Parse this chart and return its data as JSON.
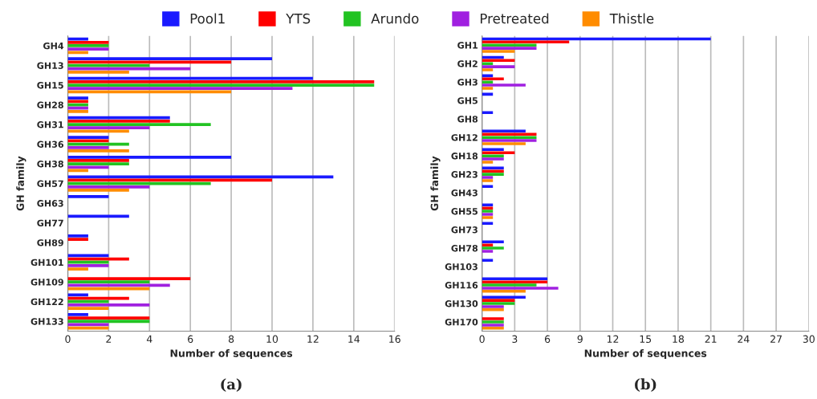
{
  "chart_data": [
    {
      "type": "bar",
      "orientation": "horizontal",
      "xlabel": "Number of sequences",
      "ylabel": "GH family",
      "annotations": [
        "(a)"
      ],
      "categories": [
        "GH4",
        "GH13",
        "GH15",
        "GH28",
        "GH31",
        "GH36",
        "GH38",
        "GH57",
        "GH63",
        "GH77",
        "GH89",
        "GH101",
        "GH109",
        "GH122",
        "GH133"
      ],
      "series": [
        {
          "name": "Pool1",
          "color": "#1a1aff",
          "values": [
            1,
            10,
            12,
            1,
            5,
            2,
            8,
            13,
            2,
            3,
            1,
            2,
            null,
            1,
            1
          ]
        },
        {
          "name": "YTS",
          "color": "#ff0000",
          "values": [
            2,
            8,
            15,
            1,
            5,
            2,
            3,
            10,
            null,
            null,
            1,
            3,
            6,
            3,
            4
          ]
        },
        {
          "name": "Arundo",
          "color": "#22c322",
          "values": [
            2,
            4,
            15,
            1,
            7,
            3,
            3,
            7,
            null,
            null,
            null,
            2,
            4,
            2,
            4
          ]
        },
        {
          "name": "Pretreated",
          "color": "#a020e0",
          "values": [
            2,
            6,
            11,
            1,
            4,
            2,
            2,
            4,
            null,
            null,
            null,
            2,
            5,
            4,
            2
          ]
        },
        {
          "name": "Thistle",
          "color": "#ff8c00",
          "values": [
            1,
            3,
            8,
            1,
            3,
            3,
            1,
            3,
            null,
            null,
            null,
            1,
            4,
            2,
            2
          ]
        }
      ],
      "xlim": [
        0,
        16
      ],
      "xticks": [
        0,
        2,
        4,
        6,
        8,
        10,
        12,
        14,
        16
      ],
      "grid": "x",
      "legend": "top"
    },
    {
      "type": "bar",
      "orientation": "horizontal",
      "xlabel": "Number of sequences",
      "ylabel": "GH family",
      "annotations": [
        "(b)"
      ],
      "categories": [
        "GH1",
        "GH2",
        "GH3",
        "GH5",
        "GH8",
        "GH12",
        "GH18",
        "GH23",
        "GH43",
        "GH55",
        "GH73",
        "GH78",
        "GH103",
        "GH116",
        "GH130",
        "GH170"
      ],
      "series": [
        {
          "name": "Pool1",
          "color": "#1a1aff",
          "values": [
            21,
            2,
            1,
            1,
            1,
            4,
            2,
            2,
            1,
            1,
            1,
            2,
            1,
            6,
            4,
            null
          ]
        },
        {
          "name": "YTS",
          "color": "#ff0000",
          "values": [
            8,
            3,
            2,
            null,
            null,
            5,
            3,
            2,
            null,
            1,
            null,
            1,
            null,
            6,
            3,
            2
          ]
        },
        {
          "name": "Arundo",
          "color": "#22c322",
          "values": [
            5,
            1,
            1,
            null,
            null,
            5,
            2,
            2,
            null,
            1,
            null,
            2,
            null,
            5,
            3,
            2
          ]
        },
        {
          "name": "Pretreated",
          "color": "#a020e0",
          "values": [
            5,
            3,
            4,
            null,
            null,
            5,
            2,
            1,
            null,
            1,
            null,
            1,
            null,
            7,
            2,
            2
          ]
        },
        {
          "name": "Thistle",
          "color": "#ff8c00",
          "values": [
            3,
            1,
            1,
            null,
            null,
            4,
            1,
            1,
            null,
            1,
            null,
            null,
            null,
            4,
            2,
            2
          ]
        }
      ],
      "xlim": [
        0,
        30
      ],
      "xticks": [
        0,
        3,
        6,
        9,
        12,
        15,
        18,
        21,
        24,
        27,
        30
      ],
      "grid": "x"
    }
  ]
}
